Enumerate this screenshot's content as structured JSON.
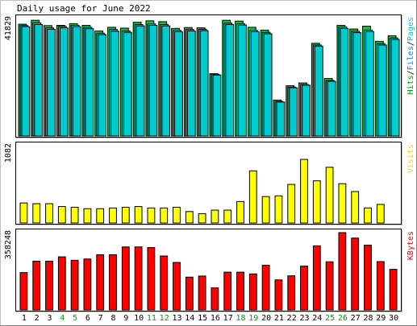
{
  "chart_data": {
    "type": "bar",
    "title": "Daily usage for June 2022",
    "categories": [
      "1",
      "2",
      "3",
      "4",
      "5",
      "6",
      "7",
      "8",
      "9",
      "10",
      "11",
      "12",
      "13",
      "14",
      "15",
      "16",
      "17",
      "18",
      "19",
      "20",
      "21",
      "22",
      "23",
      "24",
      "25",
      "26",
      "27",
      "28",
      "29",
      "30"
    ],
    "weekend_days": [
      "4",
      "5",
      "11",
      "12",
      "18",
      "19",
      "25",
      "26"
    ],
    "panels": [
      {
        "id": "hits-files-pages",
        "ymax_label": "41829",
        "ymax": 41829,
        "series_legend": [
          {
            "name": "Pages",
            "color": "#00cccc"
          },
          {
            "name": "Files",
            "color": "#0080ff"
          },
          {
            "name": "Hits",
            "color": "#00a000"
          }
        ],
        "series": [
          {
            "name": "Hits",
            "color": "#00cc33",
            "values": [
              39800,
              41200,
              39300,
              39400,
              40000,
              39400,
              37400,
              38700,
              38400,
              40500,
              41000,
              40700,
              38300,
              38600,
              38500,
              22200,
              41200,
              40900,
              38700,
              37700,
              12800,
              17900,
              18900,
              33000,
              20500,
              39400,
              38100,
              39100,
              33700,
              35700
            ]
          },
          {
            "name": "Files",
            "color": "#00bfff",
            "values": [
              39300,
              40300,
              38500,
              39000,
              39400,
              38700,
              36600,
              37900,
              37400,
              39700,
              39900,
              39700,
              37600,
              37900,
              38000,
              22000,
              40200,
              40000,
              37600,
              36900,
              12300,
              17400,
              18300,
              32400,
              19800,
              38800,
              37300,
              37700,
              32900,
              34900
            ]
          },
          {
            "name": "Pages",
            "color": "#00cccc",
            "values": [
              38900,
              39700,
              38000,
              38500,
              38900,
              38200,
              36100,
              37300,
              36900,
              39200,
              39400,
              39200,
              37100,
              37400,
              37500,
              21700,
              39700,
              39500,
              37100,
              36400,
              12100,
              17200,
              18100,
              32000,
              19500,
              38300,
              36800,
              37200,
              32400,
              34400
            ]
          }
        ]
      },
      {
        "id": "visits",
        "ymax_label": "1082",
        "ymax": 1082,
        "series_legend": [
          {
            "name": "Visits",
            "color": "#e0e000"
          }
        ],
        "series": [
          {
            "name": "Visits",
            "color": "#ffff00",
            "values": [
              280,
              270,
              270,
              230,
              220,
              200,
              200,
              210,
              220,
              230,
              210,
              210,
              220,
              160,
              130,
              180,
              180,
              300,
              730,
              370,
              380,
              540,
              890,
              590,
              780,
              550,
              440,
              210,
              260,
              0
            ]
          }
        ]
      },
      {
        "id": "kbytes",
        "ymax_label": "358248",
        "ymax": 358248,
        "series_legend": [
          {
            "name": "KBytes",
            "color": "#ff0000"
          }
        ],
        "series": [
          {
            "name": "KBytes",
            "color": "#ff0000",
            "values": [
              173000,
              226000,
              226000,
              246000,
              230000,
              236000,
              256000,
              256000,
              292000,
              292000,
              289000,
              250000,
              220000,
              152000,
              157000,
              102000,
              175000,
              175000,
              167000,
              207000,
              139000,
              158000,
              203000,
              297000,
              223000,
              358248,
              333000,
              300000,
              224000,
              188000
            ]
          }
        ]
      }
    ]
  }
}
